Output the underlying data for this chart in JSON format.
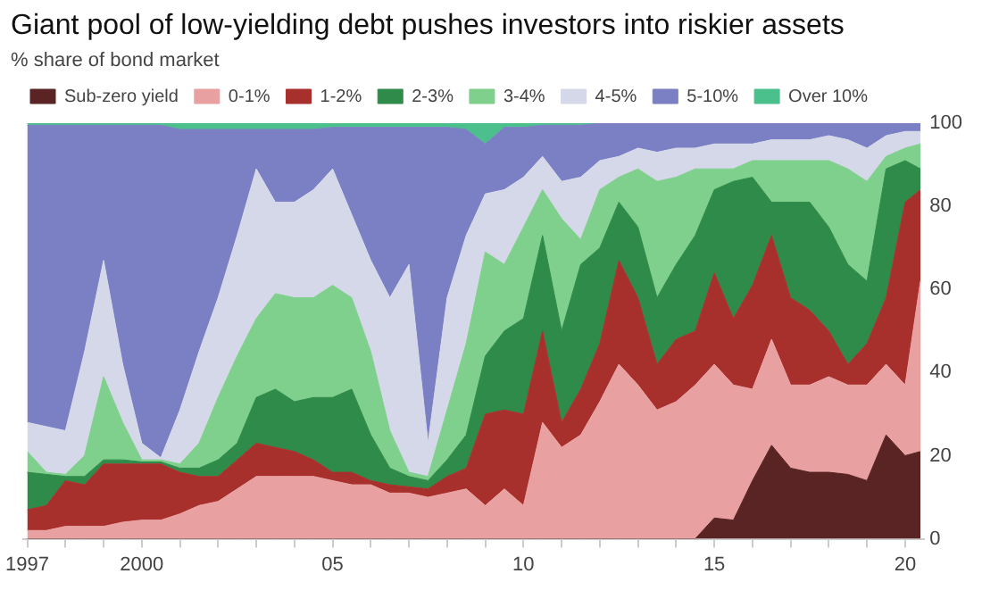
{
  "chart_data": {
    "type": "area",
    "title": "Giant pool of low-yielding debt pushes investors into riskier assets",
    "subtitle": "% share of bond market",
    "stacked": true,
    "legend": "top left",
    "grid": false,
    "marker": "none",
    "x": [
      1997,
      1997.5,
      1998,
      1998.5,
      1999,
      1999.5,
      2000,
      2000.5,
      2001,
      2001.5,
      2002,
      2002.5,
      2003,
      2003.5,
      2004,
      2004.5,
      2005,
      2005.5,
      2006,
      2006.5,
      2007,
      2007.5,
      2008,
      2008.5,
      2009,
      2009.5,
      2010,
      2010.5,
      2011,
      2011.5,
      2012,
      2012.5,
      2013,
      2013.5,
      2014,
      2014.5,
      2015,
      2015.5,
      2016,
      2016.5,
      2017,
      2017.5,
      2018,
      2018.5,
      2019,
      2019.5,
      2020,
      2020.4
    ],
    "xlim": [
      1996.9,
      2020.5
    ],
    "xticks": [
      1997,
      {
        "value": 1998,
        "label": null
      },
      {
        "value": 1999,
        "label": null
      },
      2000,
      {
        "value": 2001,
        "label": null
      },
      {
        "value": 2002,
        "label": null
      },
      {
        "value": 2003,
        "label": null
      },
      {
        "value": 2004,
        "label": null
      },
      {
        "value": 2005,
        "label": "05"
      },
      {
        "value": 2006,
        "label": null
      },
      {
        "value": 2007,
        "label": null
      },
      {
        "value": 2008,
        "label": null
      },
      {
        "value": 2009,
        "label": null
      },
      {
        "value": 2010,
        "label": "10"
      },
      {
        "value": 2011,
        "label": null
      },
      {
        "value": 2012,
        "label": null
      },
      {
        "value": 2013,
        "label": null
      },
      {
        "value": 2014,
        "label": null
      },
      {
        "value": 2015,
        "label": "15"
      },
      {
        "value": 2016,
        "label": null
      },
      {
        "value": 2017,
        "label": null
      },
      {
        "value": 2018,
        "label": null
      },
      {
        "value": 2019,
        "label": null
      },
      {
        "value": 2020,
        "label": "20"
      }
    ],
    "ylim": [
      0,
      100
    ],
    "yticks": [
      0,
      20,
      40,
      60,
      80,
      100
    ],
    "series": [
      {
        "name": "Sub-zero yield",
        "color": "#5a2424",
        "values": [
          0,
          0,
          0,
          0,
          0,
          0,
          0,
          0,
          0,
          0,
          0,
          0,
          0,
          0,
          0,
          0,
          0,
          0,
          0,
          0,
          0,
          0,
          0,
          0,
          0,
          0,
          0,
          0,
          0,
          0,
          0,
          0,
          0,
          0,
          0,
          0,
          5,
          4.5,
          14,
          22.5,
          17,
          16,
          16,
          15.5,
          14,
          25,
          20,
          21
        ]
      },
      {
        "name": "0-1%",
        "color": "#e8a0a0",
        "values": [
          2,
          2,
          3,
          3,
          3,
          4,
          4.5,
          4.5,
          6,
          8,
          9,
          12,
          15,
          15,
          15,
          15,
          14,
          13,
          13,
          11,
          11,
          10,
          11,
          12,
          8,
          12,
          8,
          28,
          22,
          25,
          33,
          42,
          37,
          31,
          33,
          37,
          37,
          32.5,
          22,
          25.5,
          20,
          21,
          23,
          21.5,
          23,
          17,
          17,
          41
        ]
      },
      {
        "name": "1-2%",
        "color": "#a8302c",
        "values": [
          5,
          6,
          11,
          10,
          15,
          14,
          13.5,
          13.5,
          10,
          7,
          6,
          7,
          8,
          7,
          6,
          4,
          2,
          3,
          1,
          2,
          1.5,
          2,
          4,
          5,
          22,
          19,
          22,
          22,
          6,
          11,
          14,
          25,
          21,
          11,
          15,
          13,
          22,
          16,
          25,
          25,
          21,
          18,
          11,
          5,
          10,
          16,
          44,
          22
        ]
      },
      {
        "name": "2-3%",
        "color": "#2e8b4a",
        "values": [
          9,
          7.5,
          1,
          2,
          1,
          1,
          0.5,
          0.5,
          1,
          2,
          4,
          4,
          11,
          14,
          12,
          15,
          18,
          20,
          11,
          4,
          2.5,
          2,
          4,
          8,
          14,
          19,
          23,
          23,
          22,
          30,
          23,
          14,
          17,
          16,
          18,
          23,
          20,
          33,
          26,
          8,
          23,
          26,
          25,
          24,
          15,
          31,
          10,
          5
        ]
      },
      {
        "name": "3-4%",
        "color": "#7fd08c",
        "values": [
          5,
          0.5,
          0.5,
          5,
          20,
          9,
          0.5,
          0.5,
          1,
          6,
          15,
          21,
          19,
          23,
          25,
          24,
          27,
          22,
          20,
          9,
          1,
          1,
          12,
          22,
          25,
          16,
          22,
          11,
          27,
          6,
          14,
          6,
          14,
          28,
          21,
          16,
          5,
          3,
          4,
          10,
          10,
          10,
          16,
          23,
          24,
          3,
          3,
          6
        ]
      },
      {
        "name": "4-5%",
        "color": "#d4d8e8",
        "values": [
          7,
          11,
          10.5,
          25,
          28,
          14,
          4,
          0.5,
          13,
          22,
          24,
          29,
          36,
          22,
          23,
          26,
          28,
          20,
          22,
          32,
          50,
          8,
          27,
          26,
          14,
          18,
          12,
          8,
          9,
          15,
          7,
          5,
          5,
          7,
          7,
          5,
          6,
          6,
          4,
          5,
          5,
          5,
          6,
          7,
          8,
          5,
          4,
          3
        ]
      },
      {
        "name": "5-10%",
        "color": "#7b7fc4",
        "values": [
          71.5,
          72.5,
          73.5,
          54.5,
          32.5,
          57.5,
          76.5,
          80,
          67.5,
          53.5,
          40.5,
          25.5,
          9.5,
          17.5,
          17.5,
          14.5,
          10,
          21,
          32,
          41,
          33,
          76,
          41,
          25.5,
          12,
          15,
          12,
          7.5,
          13.5,
          12.5,
          9,
          8,
          6,
          7,
          6,
          6,
          5,
          5,
          5,
          4,
          4,
          4,
          3,
          4,
          6,
          3,
          2,
          2
        ]
      },
      {
        "name": "Over 10%",
        "color": "#4cc08c",
        "values": [
          0.5,
          0.5,
          0.5,
          0.5,
          0.5,
          0.5,
          0.5,
          0.5,
          1.5,
          1.5,
          1.5,
          1.5,
          1.5,
          1.5,
          1.5,
          1.5,
          1,
          1,
          1,
          1,
          1,
          1,
          1,
          1.5,
          5,
          1,
          1,
          0.5,
          0.5,
          0.5,
          0,
          0,
          0,
          0,
          0,
          0,
          0,
          0,
          0,
          0,
          0,
          0,
          0,
          0,
          0,
          0,
          0,
          0
        ]
      }
    ]
  }
}
